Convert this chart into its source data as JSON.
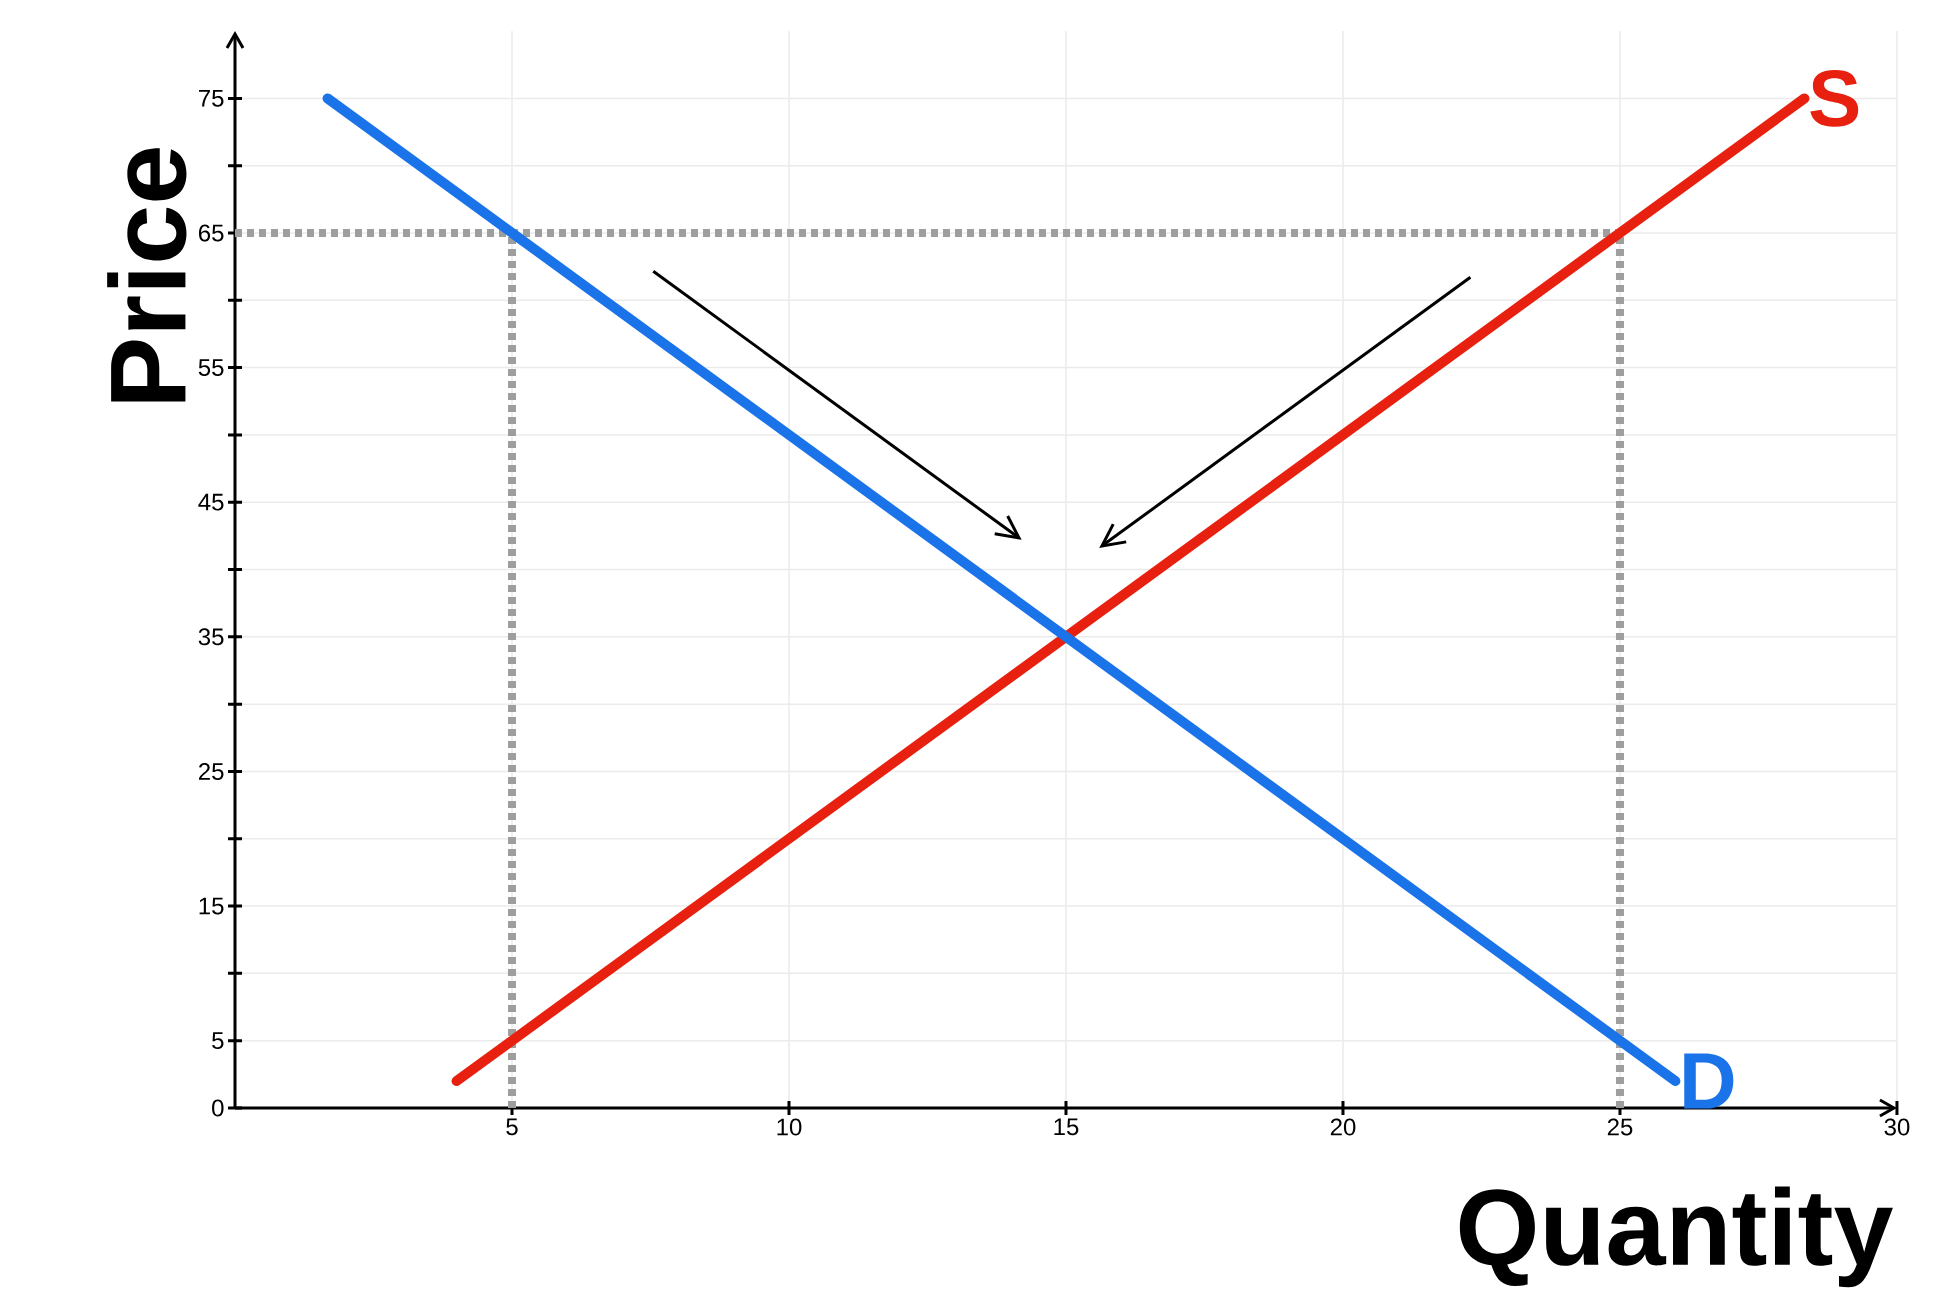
{
  "chart_data": {
    "type": "line",
    "xlabel": "Quantity",
    "ylabel": "Price",
    "xlim": [
      0,
      30
    ],
    "ylim": [
      0,
      80
    ],
    "xticks": [
      5,
      10,
      15,
      20,
      25,
      30
    ],
    "yticks": [
      0,
      5,
      {
        "value": 10,
        "label": null
      },
      15,
      {
        "value": 20,
        "label": null
      },
      25,
      {
        "value": 30,
        "label": null
      },
      35,
      {
        "value": 40,
        "label": null
      },
      45,
      {
        "value": 50,
        "label": null
      },
      55,
      {
        "value": 60,
        "label": null
      },
      65,
      {
        "value": 70,
        "label": null
      },
      75
    ],
    "grid": true,
    "marker": "none",
    "series": [
      {
        "color": "#9e9e9e",
        "line_style": "dotted",
        "x": [
          0,
          25
        ],
        "values": [
          65,
          65
        ]
      },
      {
        "color": "#9e9e9e",
        "line_style": "dotted",
        "x": [
          5,
          5
        ],
        "values": [
          0,
          65
        ]
      },
      {
        "color": "#9e9e9e",
        "line_style": "dotted",
        "x": [
          25,
          25
        ],
        "values": [
          0,
          65
        ]
      },
      {
        "name": "S",
        "color": "#e8200f",
        "line_style": "solid",
        "x": [
          4,
          28.33
        ],
        "values": [
          2,
          75
        ]
      },
      {
        "name": "D",
        "color": "#1a73e8",
        "line_style": "solid",
        "x": [
          1.67,
          26
        ],
        "values": [
          75,
          2
        ]
      }
    ]
  }
}
